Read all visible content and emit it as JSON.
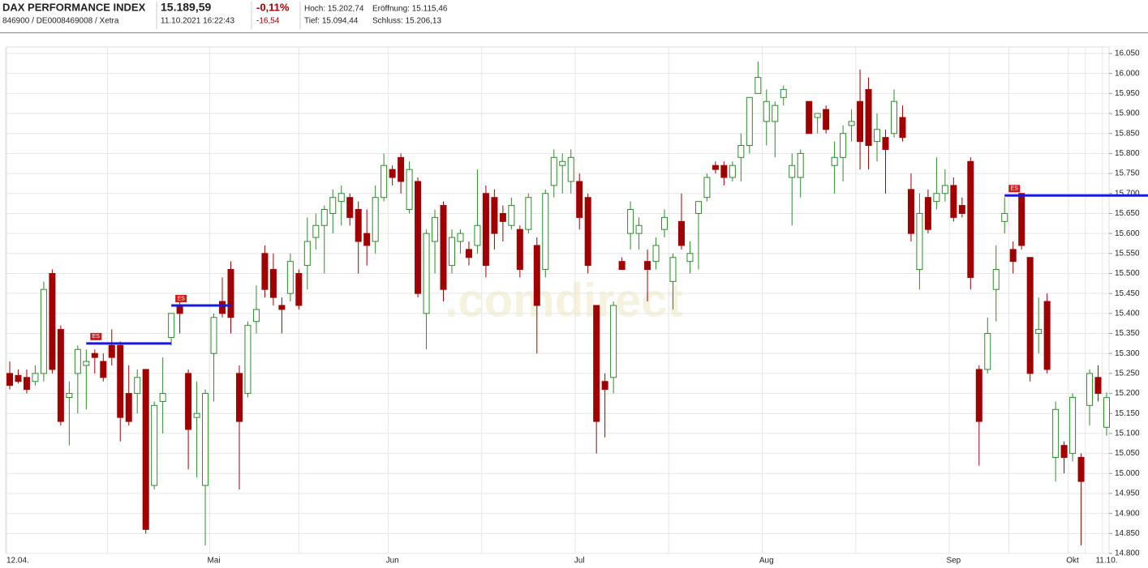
{
  "header": {
    "name": "DAX PERFORMANCE INDEX",
    "ids": "846900 / DE0008469008 / Xetra",
    "price": "15.189,59",
    "datetime": "11.10.2021 16:22:43",
    "change_pct": "-0,11%",
    "change_abs": "-16,54",
    "high": "Hoch: 15.202,74",
    "open": "Eröffnung: 15.115,46",
    "low": "Tief: 15.094,44",
    "close": "Schluss: 15.206,13"
  },
  "watermark": ".comdirect",
  "chart_data": {
    "type": "candlestick",
    "up_color": "#2e8b2e",
    "down_color": "#a00000",
    "grid": true,
    "categories": [
      "12.04.",
      null,
      null,
      null,
      null,
      null,
      null,
      null,
      null,
      null,
      null,
      null,
      null,
      null,
      null,
      null,
      null,
      null,
      null,
      null,
      null,
      null,
      null,
      null,
      "Mai",
      null,
      null,
      null,
      null,
      null,
      null,
      null,
      null,
      null,
      null,
      null,
      null,
      null,
      null,
      null,
      null,
      null,
      null,
      null,
      null,
      "Jun",
      null,
      null,
      null,
      null,
      null,
      null,
      null,
      null,
      null,
      null,
      null,
      null,
      null,
      null,
      null,
      null,
      null,
      null,
      null,
      null,
      null,
      "Jul",
      null,
      null,
      null,
      null,
      null,
      null,
      null,
      null,
      null,
      null,
      null,
      null,
      null,
      null,
      null,
      null,
      null,
      null,
      null,
      null,
      null,
      "Aug",
      null,
      null,
      null,
      null,
      null,
      null,
      null,
      null,
      null,
      null,
      null,
      null,
      null,
      null,
      null,
      null,
      null,
      null,
      null,
      null,
      null,
      "Sep",
      null,
      null,
      null,
      null,
      null,
      null,
      null,
      null,
      null,
      null,
      null,
      null,
      null,
      "Okt",
      null,
      null,
      null,
      "11.10."
    ],
    "open": [
      15250,
      15245,
      15240,
      15230,
      15250,
      15500,
      15360,
      15190,
      15250,
      15270,
      15300,
      15280,
      15320,
      15320,
      15200,
      15200,
      15260,
      14970,
      15180,
      15340,
      15420,
      15250,
      15140,
      14970,
      15300,
      15430,
      15510,
      15250,
      15200,
      15380,
      15550,
      15510,
      15420,
      15450,
      15500,
      15520,
      15590,
      15620,
      15650,
      15680,
      15690,
      15660,
      15600,
      15580,
      15690,
      15760,
      15790,
      15660,
      15730,
      15400,
      15580,
      15670,
      15520,
      15580,
      15560,
      15570,
      15700,
      15690,
      15650,
      15620,
      15610,
      15610,
      15570,
      15510,
      15720,
      15770,
      15730,
      15730,
      15690,
      15420,
      15230,
      15240,
      15530,
      15600,
      15600,
      15530,
      15530,
      15610,
      15480,
      15630,
      15530,
      15650,
      15690,
      15770,
      15770,
      15740,
      15790,
      15820,
      15950,
      15880,
      15880,
      15940,
      15740,
      15740,
      15930,
      15890,
      15910,
      15770,
      15790,
      15870,
      15930,
      15960,
      15830,
      15840,
      15850,
      15890,
      15710,
      15510,
      15690,
      15680,
      15700,
      15720,
      15670,
      15780,
      15260,
      15260,
      15460,
      15630,
      15560,
      15700,
      15540,
      15350,
      15430,
      15040,
      15070,
      15050,
      15040,
      15170,
      15240,
      15115.46
    ],
    "high": [
      15280,
      15260,
      15260,
      15270,
      15480,
      15510,
      15370,
      15230,
      15320,
      15310,
      15310,
      15300,
      15360,
      15330,
      15270,
      15260,
      15260,
      15180,
      15290,
      15400,
      15440,
      15260,
      15230,
      15210,
      15400,
      15490,
      15530,
      15270,
      15380,
      15470,
      15570,
      15550,
      15440,
      15550,
      15510,
      15640,
      15650,
      15670,
      15710,
      15720,
      15700,
      15680,
      15660,
      15720,
      15800,
      15770,
      15800,
      15780,
      15740,
      15610,
      15660,
      15680,
      15610,
      15610,
      15580,
      15760,
      15720,
      15710,
      15670,
      15690,
      15620,
      15700,
      15590,
      15710,
      15810,
      15800,
      15810,
      15750,
      15700,
      15420,
      15250,
      15430,
      15540,
      15680,
      15640,
      15560,
      15590,
      15660,
      15550,
      15700,
      15580,
      15680,
      15750,
      15780,
      15780,
      15780,
      15850,
      15940,
      16030,
      15960,
      15930,
      15970,
      15800,
      15810,
      15930,
      15900,
      15920,
      15830,
      15870,
      15910,
      16010,
      15990,
      15900,
      15860,
      15960,
      15920,
      15750,
      15700,
      15710,
      15790,
      15760,
      15740,
      15690,
      15790,
      15270,
      15390,
      15570,
      15690,
      15580,
      15700,
      15540,
      15440,
      15450,
      15180,
      15080,
      15200,
      15050,
      15260,
      15270,
      15202.74
    ],
    "low": [
      15210,
      15225,
      15200,
      15220,
      15230,
      15250,
      15120,
      15070,
      15150,
      15160,
      15250,
      15230,
      15270,
      15080,
      15120,
      15150,
      14850,
      14960,
      15100,
      15320,
      15350,
      15010,
      14990,
      14820,
      15180,
      15390,
      15350,
      14960,
      15190,
      15350,
      15440,
      15420,
      15350,
      15430,
      15410,
      15460,
      15560,
      15500,
      15600,
      15620,
      15620,
      15500,
      15520,
      15550,
      15680,
      15720,
      15700,
      15650,
      15440,
      15310,
      15500,
      15430,
      15500,
      15550,
      15520,
      15550,
      15490,
      15560,
      15580,
      15610,
      15490,
      15600,
      15300,
      15490,
      15690,
      15700,
      15700,
      15610,
      15500,
      15050,
      15090,
      15200,
      15510,
      15560,
      15560,
      15430,
      15510,
      15590,
      15410,
      15560,
      15500,
      15510,
      15680,
      15750,
      15720,
      15730,
      15730,
      15800,
      15950,
      15820,
      15790,
      15920,
      15620,
      15690,
      15850,
      15850,
      15850,
      15700,
      15730,
      15830,
      15760,
      15760,
      15780,
      15700,
      15840,
      15830,
      15580,
      15460,
      15600,
      15660,
      15680,
      15630,
      15640,
      15460,
      15020,
      15250,
      15380,
      15600,
      15500,
      15560,
      15230,
      15300,
      15250,
      14980,
      15000,
      15030,
      14820,
      15120,
      15180,
      15094.44
    ],
    "close": [
      15220,
      15230,
      15210,
      15250,
      15460,
      15260,
      15130,
      15200,
      15310,
      15280,
      15290,
      15240,
      15290,
      15140,
      15130,
      15240,
      14860,
      15170,
      15200,
      15400,
      15400,
      15110,
      15150,
      15200,
      15390,
      15400,
      15390,
      15130,
      15370,
      15410,
      15460,
      15440,
      15410,
      15530,
      15420,
      15580,
      15620,
      15660,
      15690,
      15700,
      15640,
      15580,
      15570,
      15690,
      15770,
      15740,
      15730,
      15760,
      15450,
      15600,
      15640,
      15460,
      15590,
      15600,
      15540,
      15620,
      15520,
      15600,
      15630,
      15670,
      15510,
      15690,
      15420,
      15700,
      15790,
      15780,
      15790,
      15640,
      15520,
      15130,
      15210,
      15420,
      15510,
      15660,
      15620,
      15510,
      15570,
      15640,
      15540,
      15570,
      15550,
      15680,
      15740,
      15760,
      15740,
      15770,
      15820,
      15940,
      15990,
      15930,
      15920,
      15960,
      15770,
      15800,
      15850,
      15900,
      15860,
      15790,
      15850,
      15880,
      15830,
      15820,
      15860,
      15810,
      15930,
      15840,
      15600,
      15650,
      15610,
      15700,
      15720,
      15640,
      15650,
      15490,
      15130,
      15350,
      15510,
      15650,
      15530,
      15570,
      15250,
      15360,
      15260,
      15160,
      15040,
      15190,
      14980,
      15250,
      15200,
      15189.59
    ],
    "ylim": [
      14800,
      16050
    ],
    "yticks": [
      {
        "value": 14800,
        "label": "14.800"
      },
      {
        "value": 14850,
        "label": "14.850"
      },
      {
        "value": 14900,
        "label": "14.900"
      },
      {
        "value": 14950,
        "label": "14.950"
      },
      {
        "value": 15000,
        "label": "15.000"
      },
      {
        "value": 15050,
        "label": "15.050"
      },
      {
        "value": 15100,
        "label": "15.100"
      },
      {
        "value": 15150,
        "label": "15.150"
      },
      {
        "value": 15200,
        "label": "15.200"
      },
      {
        "value": 15250,
        "label": "15.250"
      },
      {
        "value": 15300,
        "label": "15.300"
      },
      {
        "value": 15350,
        "label": "15.350"
      },
      {
        "value": 15400,
        "label": "15.400"
      },
      {
        "value": 15450,
        "label": "15.450"
      },
      {
        "value": 15500,
        "label": "15.500"
      },
      {
        "value": 15550,
        "label": "15.550"
      },
      {
        "value": 15600,
        "label": "15.600"
      },
      {
        "value": 15650,
        "label": "15.650"
      },
      {
        "value": 15700,
        "label": "15.700"
      },
      {
        "value": 15750,
        "label": "15.750"
      },
      {
        "value": 15800,
        "label": "15.800"
      },
      {
        "value": 15850,
        "label": "15.850"
      },
      {
        "value": 15900,
        "label": "15.900"
      },
      {
        "value": 15950,
        "label": "15.950"
      },
      {
        "value": 16000,
        "label": "16.000"
      },
      {
        "value": 16050,
        "label": "16.050"
      }
    ],
    "annotations": [
      {
        "text": "ES",
        "value": 15325,
        "from": 9,
        "to": 19
      },
      {
        "text": "ES",
        "value": 15420,
        "from": 19,
        "to": 26
      },
      {
        "text": "ES",
        "value": 15695,
        "from": 117,
        "to": 129
      }
    ]
  }
}
